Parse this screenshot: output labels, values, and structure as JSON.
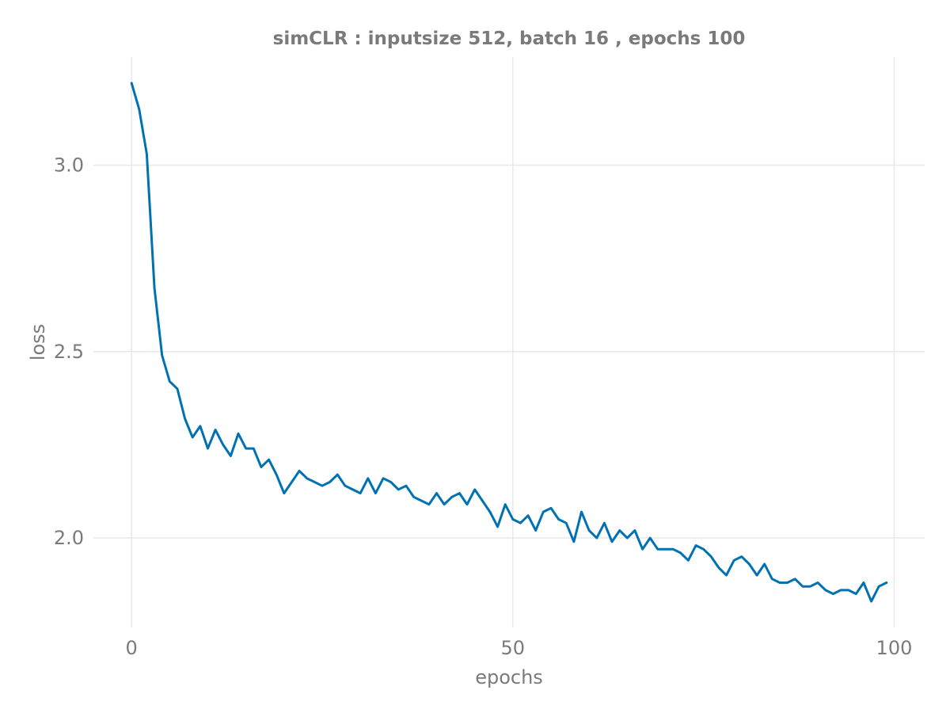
{
  "chart_data": {
    "type": "line",
    "title": "simCLR : inputsize 512, batch 16 , epochs 100",
    "xlabel": "epochs",
    "ylabel": "loss",
    "xlim": [
      -5,
      104
    ],
    "ylim": [
      1.76,
      3.29
    ],
    "xticks": [
      0,
      50,
      100
    ],
    "xtick_labels": [
      "0",
      "50",
      "100"
    ],
    "yticks": [
      2.0,
      2.5,
      3.0
    ],
    "ytick_labels": [
      "2.0",
      "2.5",
      "3.0"
    ],
    "grid": true,
    "legend": "none",
    "series": [
      {
        "color": "#0072b2",
        "x": [
          0,
          1,
          2,
          3,
          4,
          5,
          6,
          7,
          8,
          9,
          10,
          11,
          12,
          13,
          14,
          15,
          16,
          17,
          18,
          19,
          20,
          21,
          22,
          23,
          24,
          25,
          26,
          27,
          28,
          29,
          30,
          31,
          32,
          33,
          34,
          35,
          36,
          37,
          38,
          39,
          40,
          41,
          42,
          43,
          44,
          45,
          46,
          47,
          48,
          49,
          50,
          51,
          52,
          53,
          54,
          55,
          56,
          57,
          58,
          59,
          60,
          61,
          62,
          63,
          64,
          65,
          66,
          67,
          68,
          69,
          70,
          71,
          72,
          73,
          74,
          75,
          76,
          77,
          78,
          79,
          80,
          81,
          82,
          83,
          84,
          85,
          86,
          87,
          88,
          89,
          90,
          91,
          92,
          93,
          94,
          95,
          96,
          97,
          98,
          99
        ],
        "y": [
          3.22,
          3.15,
          3.03,
          2.67,
          2.49,
          2.42,
          2.4,
          2.32,
          2.27,
          2.3,
          2.24,
          2.29,
          2.25,
          2.22,
          2.28,
          2.24,
          2.24,
          2.19,
          2.21,
          2.17,
          2.12,
          2.15,
          2.18,
          2.16,
          2.15,
          2.14,
          2.15,
          2.17,
          2.14,
          2.13,
          2.12,
          2.16,
          2.12,
          2.16,
          2.15,
          2.13,
          2.14,
          2.11,
          2.1,
          2.09,
          2.12,
          2.09,
          2.11,
          2.12,
          2.09,
          2.13,
          2.1,
          2.07,
          2.03,
          2.09,
          2.05,
          2.04,
          2.06,
          2.02,
          2.07,
          2.08,
          2.05,
          2.04,
          1.99,
          2.07,
          2.02,
          2.0,
          2.04,
          1.99,
          2.02,
          2.0,
          2.02,
          1.97,
          2.0,
          1.97,
          1.97,
          1.97,
          1.96,
          1.94,
          1.98,
          1.97,
          1.95,
          1.92,
          1.9,
          1.94,
          1.95,
          1.93,
          1.9,
          1.93,
          1.89,
          1.88,
          1.88,
          1.89,
          1.87,
          1.87,
          1.88,
          1.86,
          1.85,
          1.86,
          1.86,
          1.85,
          1.88,
          1.83,
          1.87,
          1.88
        ]
      }
    ]
  }
}
